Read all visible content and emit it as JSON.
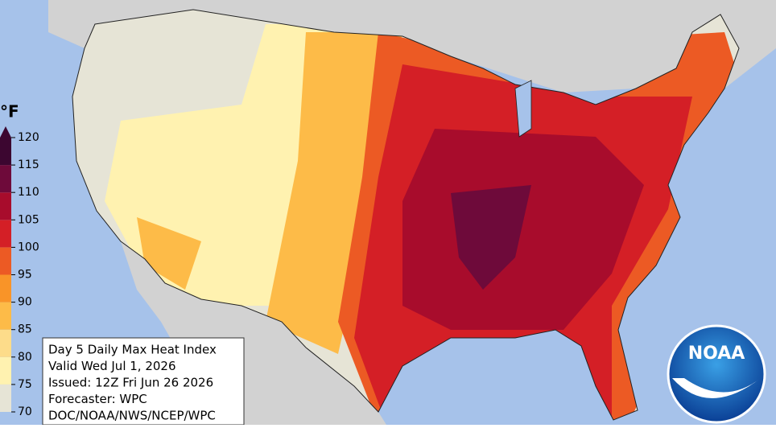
{
  "legend": {
    "unit": "°F",
    "ticks": [
      70,
      75,
      80,
      85,
      90,
      95,
      100,
      105,
      110,
      115,
      120
    ],
    "colors": [
      "#e6e4d6",
      "#fff2b0",
      "#fddc8a",
      "#fdbb48",
      "#f99428",
      "#ec5a24",
      "#d41f26",
      "#a80c2c",
      "#6e0a3a",
      "#3c0630"
    ]
  },
  "info": [
    "Day 5 Daily Max Heat Index",
    "Valid Wed Jul 1, 2026",
    "Issued: 12Z Fri Jun 26 2026",
    "Forecaster: WPC",
    "DOC/NOAA/NWS/NCEP/WPC"
  ],
  "logo": "NOAA"
}
